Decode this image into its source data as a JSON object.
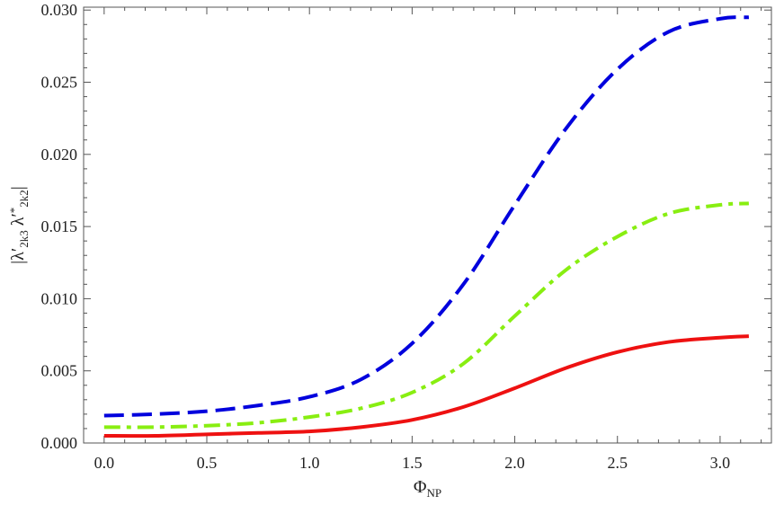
{
  "chart_data": {
    "type": "line",
    "xlabel": {
      "main": "Φ",
      "sub": "NP"
    },
    "ylabel": {
      "parts": [
        {
          "text": "|λ′",
          "style": "normal"
        },
        {
          "text": "2k3",
          "style": "sub"
        },
        {
          "text": " λ′",
          "style": "normal"
        },
        {
          "text": "*",
          "style": "sup"
        },
        {
          "text": "2k2",
          "style": "sub"
        },
        {
          "text": "|",
          "style": "normal"
        }
      ]
    },
    "xlim": [
      -0.1,
      3.25
    ],
    "ylim": [
      0.0,
      0.0302
    ],
    "xticks": [
      0.0,
      0.5,
      1.0,
      1.5,
      2.0,
      2.5,
      3.0
    ],
    "xtick_labels": [
      "0.0",
      "0.5",
      "1.0",
      "1.5",
      "2.0",
      "2.5",
      "3.0"
    ],
    "yticks": [
      0.0,
      0.005,
      0.01,
      0.015,
      0.02,
      0.025,
      0.03
    ],
    "ytick_labels": [
      "0.000",
      "0.005",
      "0.010",
      "0.015",
      "0.020",
      "0.025",
      "0.030"
    ],
    "grid": false,
    "x": [
      0.0,
      0.25,
      0.5,
      0.75,
      1.0,
      1.25,
      1.5,
      1.75,
      2.0,
      2.25,
      2.5,
      2.75,
      3.0,
      3.14
    ],
    "series": [
      {
        "color": "#0000dd",
        "style": "dashed",
        "values": [
          0.0019,
          0.002,
          0.0022,
          0.0026,
          0.0032,
          0.0044,
          0.0069,
          0.011,
          0.0165,
          0.0218,
          0.0259,
          0.0285,
          0.0294,
          0.0295
        ]
      },
      {
        "color": "#88ee11",
        "style": "dashdot",
        "values": [
          0.0011,
          0.0011,
          0.0012,
          0.0014,
          0.0018,
          0.0024,
          0.0035,
          0.0055,
          0.0088,
          0.012,
          0.0143,
          0.0159,
          0.0165,
          0.0166
        ]
      },
      {
        "color": "#ee1111",
        "style": "solid",
        "values": [
          0.0005,
          0.0005,
          0.0006,
          0.0007,
          0.0008,
          0.0011,
          0.0016,
          0.0025,
          0.0038,
          0.0052,
          0.0063,
          0.007,
          0.0073,
          0.0074
        ]
      }
    ]
  }
}
